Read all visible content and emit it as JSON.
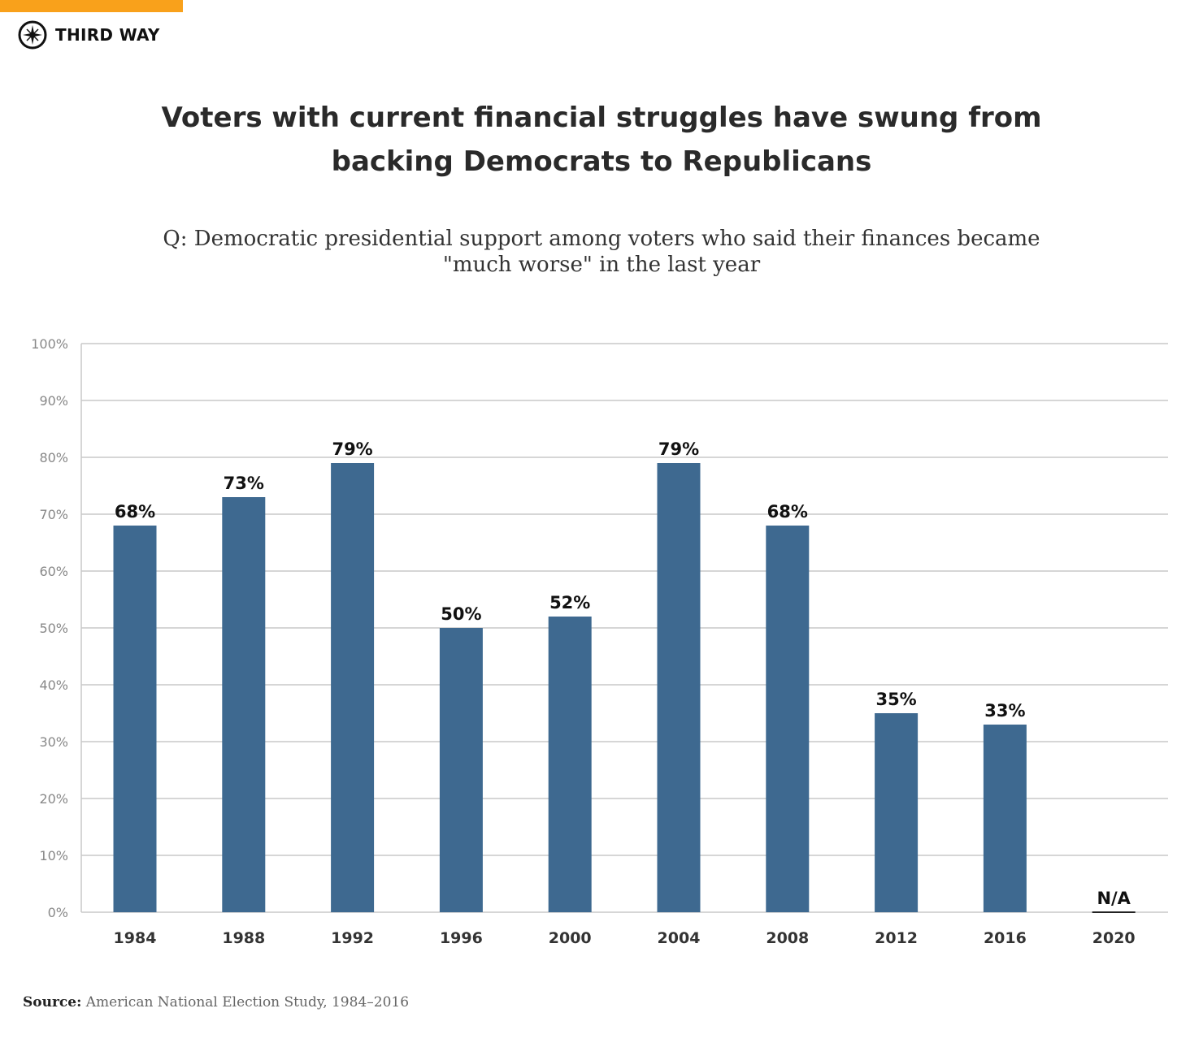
{
  "brand": {
    "name": "THIRD WAY",
    "accent_color": "#f9a11b"
  },
  "title": "Voters with current financial struggles have swung from backing Democrats to Republicans",
  "title_lines": [
    "Voters with current financial struggles have swung from",
    "backing Democrats to Republicans"
  ],
  "subtitle_lines": [
    "Q: Democratic presidential support among voters who said their finances became",
    "\"much worse\" in the last year"
  ],
  "source": {
    "label": "Source:",
    "text": "American National Election Study, 1984–2016"
  },
  "chart_data": {
    "type": "bar",
    "categories": [
      "1984",
      "1988",
      "1992",
      "1996",
      "2000",
      "2004",
      "2008",
      "2012",
      "2016",
      "2020"
    ],
    "values": [
      68,
      73,
      79,
      50,
      52,
      79,
      68,
      35,
      33,
      null
    ],
    "data_labels": [
      "68%",
      "73%",
      "79%",
      "50%",
      "52%",
      "79%",
      "68%",
      "35%",
      "33%",
      "N/A"
    ],
    "ylim": [
      0,
      100
    ],
    "yticks": [
      "0%",
      "10%",
      "20%",
      "30%",
      "40%",
      "50%",
      "60%",
      "70%",
      "80%",
      "90%",
      "100%"
    ],
    "grid": true,
    "bar_color": "#3e6990",
    "xlabel": "",
    "ylabel": ""
  }
}
